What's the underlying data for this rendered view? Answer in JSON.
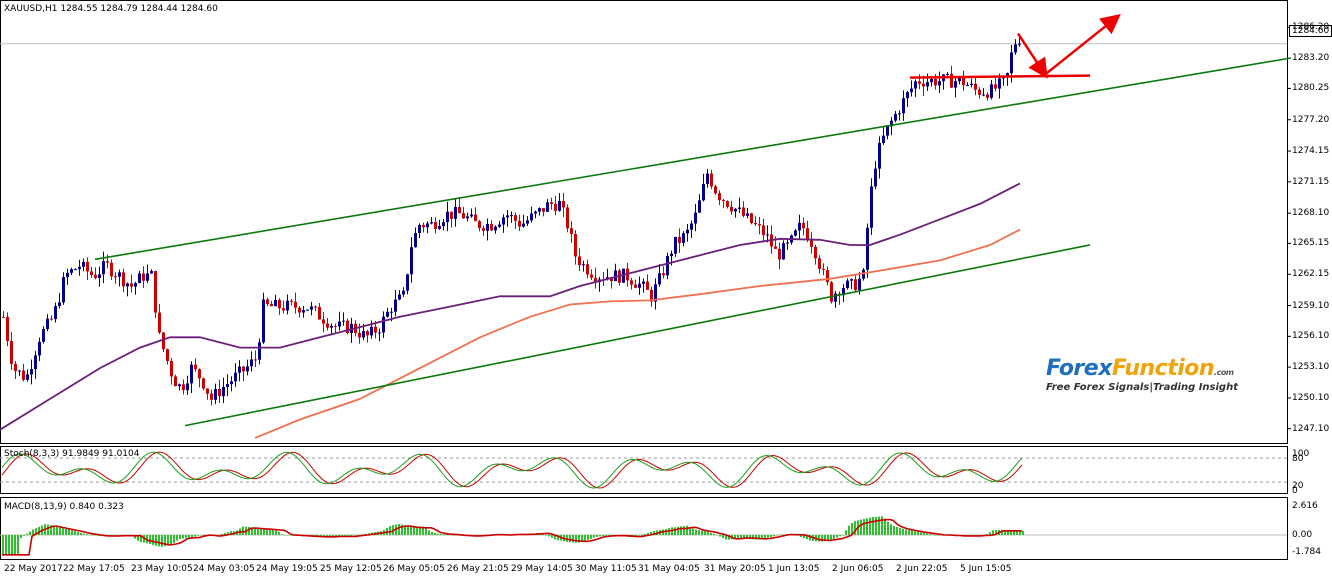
{
  "main": {
    "header": "XAUUSD,H1  1284.55 1284.79 1284.44 1284.60",
    "current_price": "1284.60",
    "price_ticks": [
      "1286.20",
      "1283.20",
      "1280.25",
      "1277.20",
      "1274.15",
      "1271.15",
      "1268.10",
      "1265.15",
      "1262.15",
      "1259.10",
      "1256.10",
      "1253.10",
      "1250.10",
      "1247.10"
    ]
  },
  "stoch": {
    "header": "Stoch(8,3,3) 91.9849 91.0104",
    "ticks": [
      "100",
      "80",
      "20",
      "0"
    ]
  },
  "macd": {
    "header": "MACD(8,13,9) 0.840 0.323",
    "ticks": [
      "2.616",
      "0.00",
      "-1.784"
    ]
  },
  "time_axis": [
    "22 May 2017",
    "22 May 17:05",
    "23 May 10:05",
    "24 May 03:05",
    "24 May 19:05",
    "25 May 12:05",
    "26 May 05:05",
    "26 May 21:05",
    "29 May 14:05",
    "30 May 11:05",
    "31 May 04:05",
    "31 May 20:05",
    "1 Jun 13:05",
    "2 Jun 06:05",
    "2 Jun 22:05",
    "5 Jun 15:05"
  ],
  "logo": {
    "forex": "Forex",
    "function": "Function",
    "com": ".com",
    "tagline": "Free Forex Signals|Trading Insight"
  },
  "colors": {
    "bull": "#00008b",
    "bear": "#cc0000",
    "trend": "#0a7a0a",
    "ma_fast": "#6b1f7a",
    "ma_slow": "#f07050",
    "annotation": "#ee0000",
    "macd_hist": "#2fbf2f",
    "macd_signal": "#cc0000"
  },
  "chart_data": {
    "type": "candlestick",
    "symbol": "XAUUSD",
    "timeframe": "H1",
    "ylim": [
      1246,
      1287.5
    ],
    "close_path": [
      [
        0,
        1259
      ],
      [
        12,
        1253
      ],
      [
        25,
        1252
      ],
      [
        38,
        1256
      ],
      [
        52,
        1258
      ],
      [
        64,
        1262
      ],
      [
        78,
        1263
      ],
      [
        92,
        1262
      ],
      [
        105,
        1263
      ],
      [
        118,
        1262
      ],
      [
        130,
        1261
      ],
      [
        142,
        1262
      ],
      [
        150,
        1262
      ],
      [
        158,
        1256
      ],
      [
        165,
        1254
      ],
      [
        172,
        1252
      ],
      [
        180,
        1251
      ],
      [
        190,
        1253
      ],
      [
        200,
        1252
      ],
      [
        210,
        1250
      ],
      [
        220,
        1251
      ],
      [
        232,
        1252
      ],
      [
        245,
        1253
      ],
      [
        255,
        1254
      ],
      [
        262,
        1259
      ],
      [
        275,
        1259
      ],
      [
        290,
        1259
      ],
      [
        305,
        1259
      ],
      [
        320,
        1258
      ],
      [
        335,
        1257
      ],
      [
        350,
        1257
      ],
      [
        365,
        1256
      ],
      [
        378,
        1257
      ],
      [
        390,
        1259
      ],
      [
        402,
        1260
      ],
      [
        410,
        1265
      ],
      [
        418,
        1267
      ],
      [
        430,
        1267
      ],
      [
        445,
        1268
      ],
      [
        460,
        1268
      ],
      [
        475,
        1267
      ],
      [
        490,
        1267
      ],
      [
        505,
        1268
      ],
      [
        520,
        1267
      ],
      [
        535,
        1268
      ],
      [
        548,
        1269
      ],
      [
        558,
        1269
      ],
      [
        566,
        1267
      ],
      [
        574,
        1264
      ],
      [
        582,
        1263
      ],
      [
        595,
        1262
      ],
      [
        610,
        1262
      ],
      [
        625,
        1262
      ],
      [
        640,
        1261
      ],
      [
        650,
        1260
      ],
      [
        660,
        1262
      ],
      [
        672,
        1265
      ],
      [
        685,
        1266
      ],
      [
        695,
        1268
      ],
      [
        706,
        1272
      ],
      [
        716,
        1270
      ],
      [
        728,
        1269
      ],
      [
        740,
        1268
      ],
      [
        752,
        1267
      ],
      [
        764,
        1266
      ],
      [
        776,
        1264
      ],
      [
        788,
        1265
      ],
      [
        800,
        1267
      ],
      [
        812,
        1265
      ],
      [
        822,
        1262
      ],
      [
        830,
        1260
      ],
      [
        840,
        1261
      ],
      [
        852,
        1261
      ],
      [
        862,
        1262
      ],
      [
        868,
        1269
      ],
      [
        874,
        1273
      ],
      [
        880,
        1275
      ],
      [
        890,
        1277
      ],
      [
        902,
        1279
      ],
      [
        915,
        1281
      ],
      [
        930,
        1281
      ],
      [
        945,
        1281
      ],
      [
        960,
        1281
      ],
      [
        975,
        1280
      ],
      [
        990,
        1280
      ],
      [
        1005,
        1281
      ],
      [
        1012,
        1284.5
      ],
      [
        1018,
        1284.6
      ]
    ],
    "trendlines": [
      {
        "from": [
          95,
          1263.6
        ],
        "to": [
          1290,
          1283.2
        ],
        "label": "upper channel"
      },
      {
        "from": [
          185,
          1247.4
        ],
        "to": [
          1090,
          1265.0
        ],
        "label": "lower channel"
      }
    ],
    "ma_fast_path": [
      [
        0,
        1247
      ],
      [
        50,
        1250
      ],
      [
        100,
        1253
      ],
      [
        140,
        1255
      ],
      [
        170,
        1256
      ],
      [
        200,
        1256
      ],
      [
        240,
        1255
      ],
      [
        280,
        1255
      ],
      [
        320,
        1256
      ],
      [
        360,
        1257
      ],
      [
        400,
        1258
      ],
      [
        450,
        1259
      ],
      [
        500,
        1260
      ],
      [
        550,
        1260
      ],
      [
        580,
        1261
      ],
      [
        620,
        1262
      ],
      [
        660,
        1263
      ],
      [
        700,
        1264
      ],
      [
        740,
        1265
      ],
      [
        780,
        1265.6
      ],
      [
        820,
        1265.5
      ],
      [
        850,
        1265
      ],
      [
        870,
        1265
      ],
      [
        900,
        1266
      ],
      [
        940,
        1267.5
      ],
      [
        980,
        1269
      ],
      [
        1020,
        1271
      ]
    ],
    "ma_slow_path": [
      [
        255,
        1246.2
      ],
      [
        300,
        1248
      ],
      [
        360,
        1250
      ],
      [
        420,
        1253
      ],
      [
        480,
        1256
      ],
      [
        530,
        1258
      ],
      [
        570,
        1259.2
      ],
      [
        610,
        1259.5
      ],
      [
        650,
        1259.6
      ],
      [
        700,
        1260.2
      ],
      [
        760,
        1261
      ],
      [
        830,
        1261.7
      ],
      [
        880,
        1262.5
      ],
      [
        940,
        1263.5
      ],
      [
        990,
        1265
      ],
      [
        1020,
        1266.5
      ]
    ],
    "annotations": [
      {
        "type": "resistance",
        "from": [
          910,
          1281.3
        ],
        "to": [
          1090,
          1281.5
        ]
      },
      {
        "type": "arrow-down",
        "from": [
          1018,
          1285.6
        ],
        "to": [
          1045,
          1281.6
        ]
      },
      {
        "type": "arrow-up",
        "from": [
          1045,
          1281.6
        ],
        "to": [
          1117,
          1287.2
        ]
      }
    ]
  }
}
